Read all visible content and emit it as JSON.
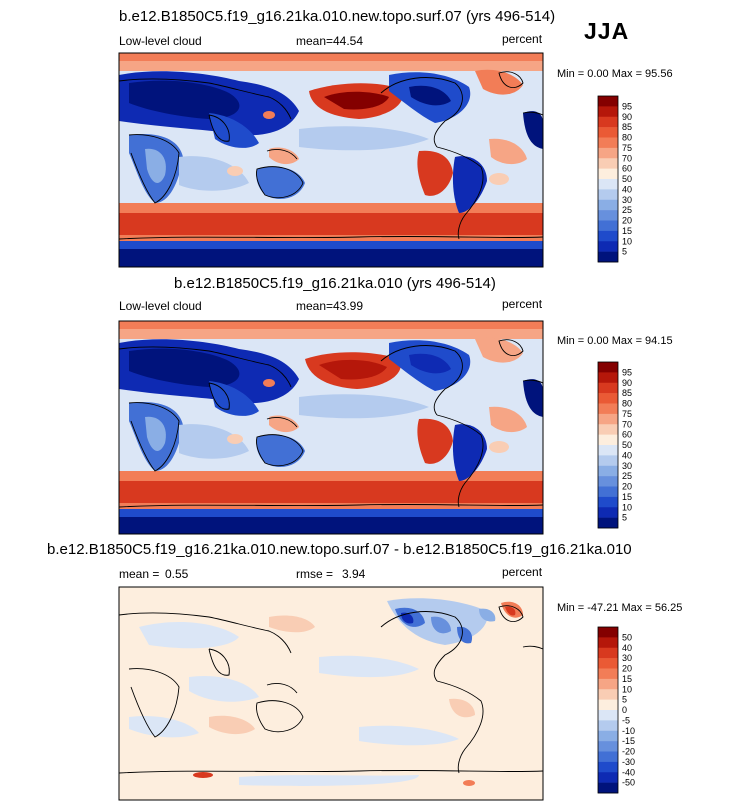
{
  "season": "JJA",
  "unit_label": "percent",
  "panels": [
    {
      "title": "b.e12.B1850C5.f19_g16.21ka.010.new.topo.surf.07 (yrs 496-514)",
      "left_label": "Low-level cloud",
      "stat1_label": "mean=",
      "stat1_value": "44.54",
      "stat2_label": "",
      "stat2_value": "",
      "minmax": "Min =   0.00 Max =  95.56"
    },
    {
      "title": "b.e12.B1850C5.f19_g16.21ka.010 (yrs 496-514)",
      "left_label": "Low-level cloud",
      "stat1_label": "mean=",
      "stat1_value": "43.99",
      "stat2_label": "",
      "stat2_value": "",
      "minmax": "Min =   0.00 Max =  94.15"
    },
    {
      "title": "b.e12.B1850C5.f19_g16.21ka.010.new.topo.surf.07 - b.e12.B1850C5.f19_g16.21ka.010",
      "left_label": "mean =",
      "stat1_label": "",
      "stat1_value": "0.55",
      "stat2_label": "rmse =",
      "stat2_value": "3.94",
      "minmax": "Min = -47.21 Max =  56.25"
    }
  ],
  "colorbars": {
    "field": {
      "levels": [
        "95",
        "90",
        "85",
        "80",
        "75",
        "70",
        "60",
        "50",
        "40",
        "30",
        "25",
        "20",
        "15",
        "10",
        "5"
      ],
      "colors": [
        "#840000",
        "#b5170a",
        "#d8391f",
        "#ea5a35",
        "#f27d57",
        "#f6a585",
        "#f9cdb4",
        "#fdeede",
        "#dbe6f6",
        "#b4cbee",
        "#8aaee5",
        "#6790dd",
        "#4270d5",
        "#1f4bcb",
        "#0e2ab3",
        "#00137c"
      ]
    },
    "diff": {
      "levels": [
        "50",
        "40",
        "30",
        "20",
        "15",
        "10",
        "5",
        "0",
        "-5",
        "-10",
        "-15",
        "-20",
        "-30",
        "-40",
        "-50"
      ],
      "colors": [
        "#840000",
        "#b5170a",
        "#d8391f",
        "#ea5a35",
        "#f27d57",
        "#f6a585",
        "#f9cdb4",
        "#fdeede",
        "#dbe6f6",
        "#b4cbee",
        "#8aaee5",
        "#6790dd",
        "#4270d5",
        "#1f4bcb",
        "#0e2ab3",
        "#00137c"
      ]
    }
  },
  "chart_data": [
    {
      "type": "heatmap",
      "title": "b.e12.B1850C5.f19_g16.21ka.010.new.topo.surf.07 (yrs 496-514)",
      "variable": "Low-level cloud",
      "units": "percent",
      "season": "JJA",
      "mean": 44.54,
      "min": 0.0,
      "max": 95.56,
      "contour_levels": [
        5,
        10,
        15,
        20,
        25,
        30,
        40,
        50,
        60,
        70,
        75,
        80,
        85,
        90,
        95
      ]
    },
    {
      "type": "heatmap",
      "title": "b.e12.B1850C5.f19_g16.21ka.010 (yrs 496-514)",
      "variable": "Low-level cloud",
      "units": "percent",
      "season": "JJA",
      "mean": 43.99,
      "min": 0.0,
      "max": 94.15,
      "contour_levels": [
        5,
        10,
        15,
        20,
        25,
        30,
        40,
        50,
        60,
        70,
        75,
        80,
        85,
        90,
        95
      ]
    },
    {
      "type": "heatmap",
      "title": "b.e12.B1850C5.f19_g16.21ka.010.new.topo.surf.07 - b.e12.B1850C5.f19_g16.21ka.010",
      "units": "percent",
      "mean": 0.55,
      "rmse": 3.94,
      "min": -47.21,
      "max": 56.25,
      "contour_levels": [
        -50,
        -40,
        -30,
        -20,
        -15,
        -10,
        -5,
        0,
        5,
        10,
        15,
        20,
        30,
        40,
        50
      ]
    }
  ]
}
